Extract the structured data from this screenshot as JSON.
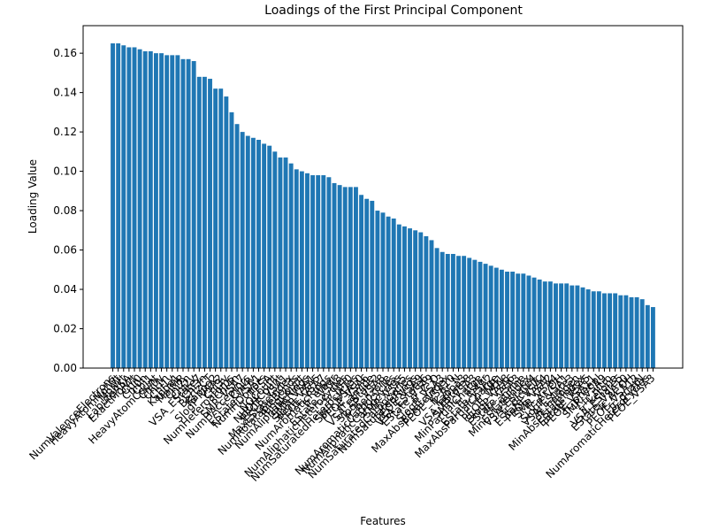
{
  "chart_data": {
    "type": "bar",
    "title": "Loadings of the First Principal Component",
    "xlabel": "Features",
    "ylabel": "Loading Value",
    "color": "#1f77b4",
    "categories": [
      "NumValenceElectrons",
      "HeavyAtomMolWt",
      "MolWt",
      "LabuteASA",
      "ExactMolWt",
      "Chi0",
      "Chi0n",
      "Chi1",
      "HeavyAtomCount",
      "Chi0v",
      "Chi1n",
      "Chi1v",
      "Kappa1",
      "MolMR",
      "Chi2n",
      "Chi2v",
      "VSA_EState7",
      "Chi3n",
      "BertzCT",
      "Kappa2",
      "SlogP_VSA2",
      "Chi3v",
      "NumHeteroatoms",
      "Chi4n",
      "SMR_VSA7",
      "NumHAcceptors",
      "Chi4v",
      "EState_VSA1",
      "NumHDonors",
      "TPSA",
      "NOCount",
      "NHOHCount",
      "PEOE_VSA1",
      "MaxEStateIndex",
      "NumRotatableBonds",
      "RingCount",
      "NumAliphaticRings",
      "SMR_VSA1",
      "SlogP_VSA5",
      "PEOE_VSA7",
      "NumAromaticRings",
      "fr_ether",
      "EState_VSA8",
      "NumAliphaticHeterocycles",
      "fr_NH0",
      "NumSaturatedHeterocycles",
      "SMR_VSA10",
      "PEOE_VSA6",
      "fr_amide",
      "VSA_EState2",
      "SlogP_VSA8",
      "fr_benzene",
      "NumAromaticCarbocycles",
      "NumAliphaticCarbocycles",
      "SMR_VSA5",
      "NumSaturatedCarbocycles",
      "NumSaturatedRings",
      "PEOE_VSA9",
      "VSA_EState6",
      "EState_VSA9",
      "fr_C_O",
      "SlogP_VSA3",
      "MaxAbsEStateIndex",
      "PEOE_VSA10",
      "fr_Ar_N",
      "Kappa3",
      "VSA_EState8",
      "SMR_VSA3",
      "MinPartialCharge",
      "fr_ester",
      "EState_VSA2",
      "MaxAbsPartialCharge",
      "fr_NH1",
      "PEOE_VSA8",
      "SlogP_VSA6",
      "EState_VSA3",
      "fr_aniline",
      "MinEStateIndex",
      "VSA_EState4",
      "fr_bicyclic",
      "EState_VSA4",
      "PEOE_VSA2",
      "SMR_VSA4",
      "fr_Ar_OH",
      "SlogP_VSA1",
      "VSA_EState3",
      "fr_halogen",
      "MinAbsEStateIndex",
      "EState_VSA5",
      "PEOE_VSA11",
      "fr_phenol",
      "SMR_VSA9",
      "fr_nitro",
      "fr_ketone",
      "VSA_EState5",
      "EState_VSA10",
      "fr_Al_OH",
      "PEOE_VSA12",
      "fr_quatN",
      "NumAromaticHeterocycles",
      "PEOE_VSA3"
    ],
    "values": [
      0.165,
      0.165,
      0.164,
      0.163,
      0.163,
      0.162,
      0.161,
      0.161,
      0.16,
      0.16,
      0.159,
      0.159,
      0.159,
      0.157,
      0.157,
      0.156,
      0.148,
      0.148,
      0.147,
      0.142,
      0.142,
      0.138,
      0.13,
      0.124,
      0.12,
      0.118,
      0.117,
      0.116,
      0.114,
      0.113,
      0.11,
      0.107,
      0.107,
      0.104,
      0.101,
      0.1,
      0.099,
      0.098,
      0.098,
      0.098,
      0.097,
      0.094,
      0.093,
      0.092,
      0.092,
      0.092,
      0.088,
      0.086,
      0.085,
      0.08,
      0.079,
      0.077,
      0.076,
      0.073,
      0.072,
      0.071,
      0.07,
      0.069,
      0.067,
      0.065,
      0.061,
      0.059,
      0.058,
      0.058,
      0.057,
      0.057,
      0.056,
      0.055,
      0.054,
      0.053,
      0.052,
      0.051,
      0.05,
      0.049,
      0.049,
      0.048,
      0.048,
      0.047,
      0.046,
      0.045,
      0.044,
      0.044,
      0.043,
      0.043,
      0.043,
      0.042,
      0.042,
      0.041,
      0.04,
      0.039,
      0.039,
      0.038,
      0.038,
      0.038,
      0.037,
      0.037,
      0.036,
      0.036,
      0.035,
      0.032,
      0.031
    ],
    "ylim": [
      0,
      0.174
    ],
    "yticks": [
      {
        "value": 0,
        "label": "0.00"
      },
      {
        "value": 0.02,
        "label": "0.02"
      },
      {
        "value": 0.04,
        "label": "0.04"
      },
      {
        "value": 0.06,
        "label": "0.06"
      },
      {
        "value": 0.08,
        "label": "0.08"
      },
      {
        "value": 0.1,
        "label": "0.10"
      },
      {
        "value": 0.12,
        "label": "0.12"
      },
      {
        "value": 0.14,
        "label": "0.14"
      },
      {
        "value": 0.16,
        "label": "0.16"
      }
    ],
    "grid": false
  }
}
